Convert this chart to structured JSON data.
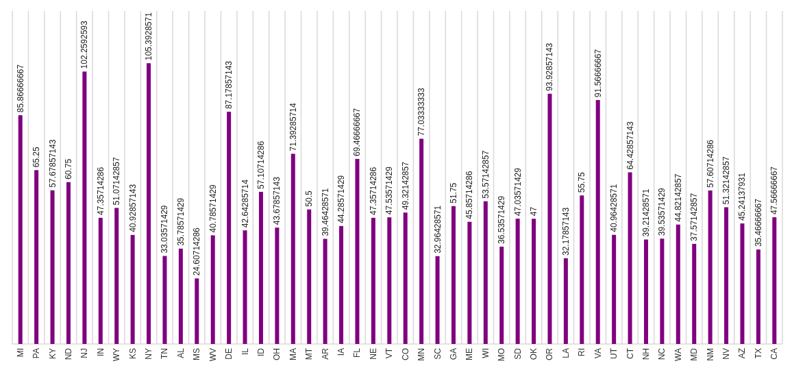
{
  "chart_data": {
    "type": "bar",
    "categories": [
      "MI",
      "PA",
      "KY",
      "ND",
      "NJ",
      "IN",
      "WY",
      "KS",
      "NY",
      "TN",
      "AL",
      "MS",
      "WV",
      "DE",
      "IL",
      "ID",
      "OH",
      "MA",
      "MT",
      "AR",
      "IA",
      "FL",
      "NE",
      "VT",
      "CO",
      "MN",
      "SC",
      "GA",
      "ME",
      "WI",
      "MO",
      "SD",
      "OK",
      "OR",
      "LA",
      "RI",
      "VA",
      "UT",
      "CT",
      "NH",
      "NC",
      "WA",
      "MD",
      "NM",
      "NV",
      "AZ",
      "TX",
      "CA"
    ],
    "values": [
      85.86666667,
      65.25,
      57.67857143,
      60.75,
      102.2592593,
      47.35714286,
      51.07142857,
      40.92857143,
      105.3928571,
      33.03571429,
      35.78571429,
      24.60714286,
      40.78571429,
      87.17857143,
      42.64285714,
      57.10714286,
      43.67857143,
      71.39285714,
      50.5,
      39.46428571,
      44.28571429,
      69.46666667,
      47.35714286,
      47.53571429,
      49.32142857,
      77.03333333,
      32.96428571,
      51.75,
      45.85714286,
      53.57142857,
      36.53571429,
      47.03571429,
      47,
      93.92857143,
      32.17857143,
      55.75,
      91.56666667,
      40.96428571,
      64.42857143,
      39.21428571,
      39.53571429,
      44.82142857,
      37.57142857,
      57.60714286,
      51.32142857,
      45.24137931,
      35.46666667,
      47.56666667
    ],
    "color": "#800080",
    "ylim": [
      0,
      125
    ],
    "tick_labels": "x",
    "grid": "x",
    "data_labels": true
  }
}
